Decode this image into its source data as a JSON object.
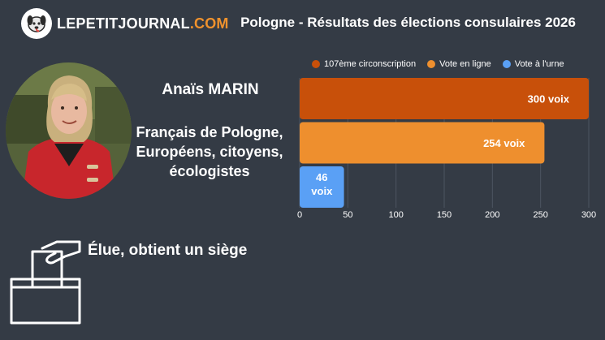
{
  "header": {
    "logo_main": "LEPETITJOURNAL",
    "logo_tld": ".COM",
    "title": "Pologne - Résultats des élections consulaires 2026"
  },
  "candidate": {
    "name": "Anaïs MARIN",
    "list_lines": [
      "Français de Pologne,",
      "Européens, citoyens,",
      "écologistes"
    ],
    "result": "Élue, obtient un siège"
  },
  "icons": {
    "logo": "dog-mascot-icon",
    "ballot": "ballot-box-icon"
  },
  "chart_data": {
    "type": "bar",
    "orientation": "horizontal",
    "series": [
      {
        "name": "107ème circonscription",
        "value": 300,
        "label": "300 voix",
        "color": "#c8500a"
      },
      {
        "name": "Vote en ligne",
        "value": 254,
        "label": "254 voix",
        "color": "#ee8f2e"
      },
      {
        "name": "Vote à l'urne",
        "value": 46,
        "label": "46 voix",
        "color": "#5aa0f5"
      }
    ],
    "xlim": [
      0,
      300
    ],
    "xticks": [
      0,
      50,
      100,
      150,
      200,
      250,
      300
    ],
    "grid": true,
    "legend_position": "top"
  }
}
